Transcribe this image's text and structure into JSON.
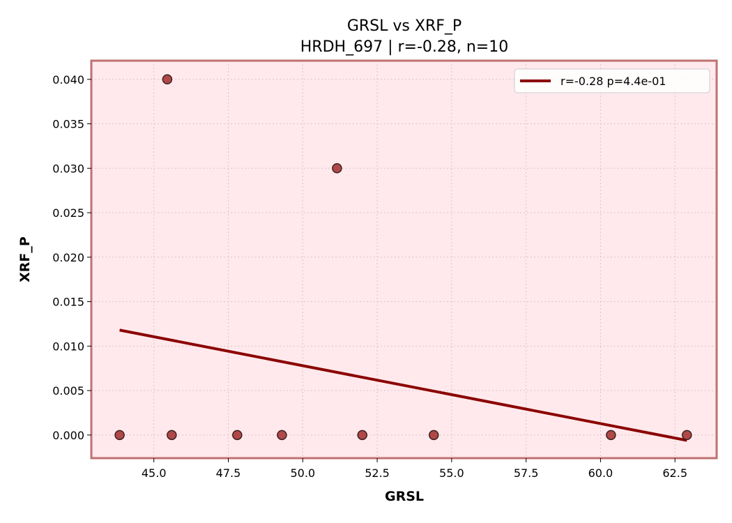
{
  "chart_data": {
    "type": "scatter",
    "title": "GRSL vs XRF_P",
    "subtitle": "HRDH_697 | r=-0.28, n=10",
    "xlabel": "GRSL",
    "ylabel": "XRF_P",
    "xlim": [
      42.9,
      63.9
    ],
    "ylim": [
      -0.0026,
      0.0421
    ],
    "xticks": [
      45.0,
      47.5,
      50.0,
      52.5,
      55.0,
      57.5,
      60.0,
      62.5
    ],
    "xtick_labels": [
      "45.0",
      "47.5",
      "50.0",
      "52.5",
      "55.0",
      "57.5",
      "60.0",
      "62.5"
    ],
    "yticks": [
      0.0,
      0.005,
      0.01,
      0.015,
      0.02,
      0.025,
      0.03,
      0.035,
      0.04
    ],
    "ytick_labels": [
      "0.000",
      "0.005",
      "0.010",
      "0.015",
      "0.020",
      "0.025",
      "0.030",
      "0.035",
      "0.040"
    ],
    "grid": true,
    "legend_position": "top-right",
    "series": [
      {
        "kind": "points",
        "x": [
          43.85,
          45.45,
          45.6,
          47.8,
          49.3,
          51.15,
          52.0,
          54.4,
          60.35,
          62.9
        ],
        "y": [
          0.0,
          0.04,
          0.0,
          0.0,
          0.0,
          0.03,
          0.0,
          0.0,
          0.0,
          0.0
        ]
      },
      {
        "kind": "fit-line",
        "name": "r=-0.28  p=4.4e-01",
        "x": [
          43.85,
          62.9
        ],
        "y": [
          0.0118,
          -0.0006
        ]
      }
    ],
    "colors": {
      "plot_background": "#ffe9ec",
      "frame": "#c07070",
      "marker_fill": "#b04848",
      "marker_edge": "#3a2020",
      "fit_line": "#8b0000",
      "grid": "#d8c4c8"
    }
  }
}
